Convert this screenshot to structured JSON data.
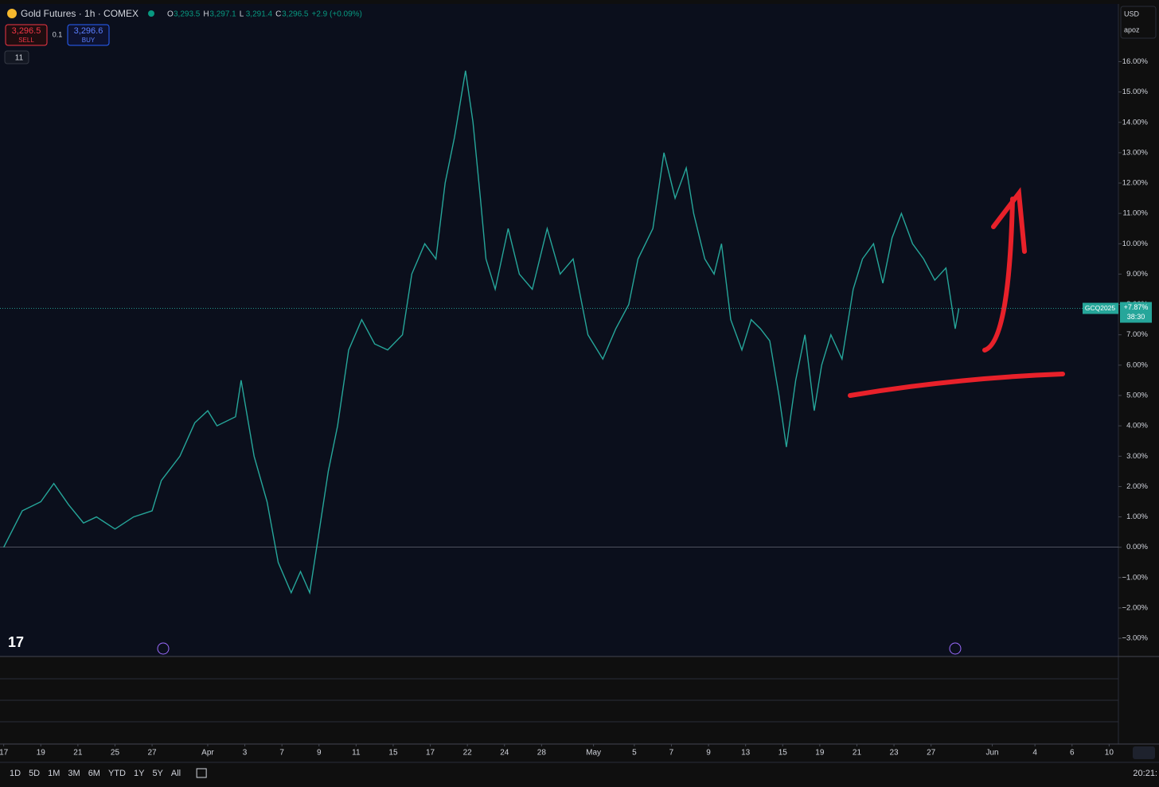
{
  "header": {
    "symbol": "Gold Futures · 1h · COMEX",
    "ohlc": [
      {
        "label": "O",
        "value": "3,293.5"
      },
      {
        "label": "H",
        "value": "3,297.1"
      },
      {
        "label": "L",
        "value": "3,291.4"
      },
      {
        "label": "C",
        "value": "3,296.5"
      }
    ],
    "change": "+2.9 (+0.09%)",
    "sell": {
      "price": "3,296.5",
      "label": "SELL"
    },
    "spread": "0.1",
    "buy": {
      "price": "3,296.6",
      "label": "BUY"
    },
    "indicator_count": "11",
    "currency": "USD",
    "layout": "apoz"
  },
  "price_tag": {
    "symbol": "GCQ2025",
    "change": "+7.87%",
    "countdown": "38:30"
  },
  "footer": {
    "ranges": [
      "1D",
      "5D",
      "1M",
      "3M",
      "6M",
      "YTD",
      "1Y",
      "5Y",
      "All"
    ],
    "clock": "20:21:"
  },
  "chart_data": {
    "type": "line",
    "xlim": [
      -0.2,
      60.1
    ],
    "ylim": [
      -3.6,
      17.9
    ],
    "grid": false,
    "zero_line": true,
    "xticks": [
      {
        "value": 0,
        "label": "17"
      },
      {
        "value": 2,
        "label": "19"
      },
      {
        "value": 4,
        "label": "21"
      },
      {
        "value": 6,
        "label": "25"
      },
      {
        "value": 8,
        "label": "27"
      },
      {
        "value": 11,
        "label": "Apr"
      },
      {
        "value": 13,
        "label": "3"
      },
      {
        "value": 15,
        "label": "7"
      },
      {
        "value": 17,
        "label": "9"
      },
      {
        "value": 19,
        "label": "11"
      },
      {
        "value": 21,
        "label": "15"
      },
      {
        "value": 23,
        "label": "17"
      },
      {
        "value": 25,
        "label": "22"
      },
      {
        "value": 27,
        "label": "24"
      },
      {
        "value": 29,
        "label": "28"
      },
      {
        "value": 31.8,
        "label": "May"
      },
      {
        "value": 34,
        "label": "5"
      },
      {
        "value": 36,
        "label": "7"
      },
      {
        "value": 38,
        "label": "9"
      },
      {
        "value": 40,
        "label": "13"
      },
      {
        "value": 42,
        "label": "15"
      },
      {
        "value": 44,
        "label": "19"
      },
      {
        "value": 46,
        "label": "21"
      },
      {
        "value": 48,
        "label": "23"
      },
      {
        "value": 50,
        "label": "27"
      },
      {
        "value": 53.3,
        "label": "Jun"
      },
      {
        "value": 55.6,
        "label": "4"
      },
      {
        "value": 57.6,
        "label": "6"
      },
      {
        "value": 59.6,
        "label": "10"
      }
    ],
    "yticks": [
      {
        "value": -3,
        "label": "−3.00%"
      },
      {
        "value": -2,
        "label": "−2.00%"
      },
      {
        "value": -1,
        "label": "−1.00%"
      },
      {
        "value": 0,
        "label": "0.00%"
      },
      {
        "value": 1,
        "label": "1.00%"
      },
      {
        "value": 2,
        "label": "2.00%"
      },
      {
        "value": 3,
        "label": "3.00%"
      },
      {
        "value": 4,
        "label": "4.00%"
      },
      {
        "value": 5,
        "label": "5.00%"
      },
      {
        "value": 6,
        "label": "6.00%"
      },
      {
        "value": 7,
        "label": "7.00%"
      },
      {
        "value": 8,
        "label": "8.00%"
      },
      {
        "value": 9,
        "label": "9.00%"
      },
      {
        "value": 10,
        "label": "10.00%"
      },
      {
        "value": 11,
        "label": "11.00%"
      },
      {
        "value": 12,
        "label": "12.00%"
      },
      {
        "value": 13,
        "label": "13.00%"
      },
      {
        "value": 14,
        "label": "14.00%"
      },
      {
        "value": 15,
        "label": "15.00%"
      },
      {
        "value": 16,
        "label": "16.00%"
      }
    ],
    "series": [
      {
        "name": "GCQ2025",
        "color": "#26a69a",
        "x": [
          0,
          1,
          2,
          2.7,
          3.5,
          4.3,
          5,
          6,
          7,
          8,
          8.5,
          9.5,
          10.3,
          11,
          11.5,
          12.5,
          12.8,
          13.5,
          14.2,
          14.8,
          15.5,
          16,
          16.5,
          17,
          17.5,
          18,
          18.6,
          19.3,
          20,
          20.7,
          21.5,
          22,
          22.7,
          23.3,
          23.8,
          24.3,
          24.9,
          25.3,
          25.7,
          26,
          26.5,
          27.2,
          27.8,
          28.5,
          29.3,
          30,
          30.7,
          31.5,
          32.3,
          33,
          33.7,
          34.2,
          35,
          35.6,
          36.2,
          36.8,
          37.2,
          37.8,
          38.3,
          38.7,
          39.2,
          39.8,
          40.3,
          40.8,
          41.3,
          41.8,
          42.2,
          42.7,
          43.2,
          43.7,
          44.1,
          44.6,
          45.2,
          45.8,
          46.3,
          46.9,
          47.4,
          47.9,
          48.4,
          49,
          49.6,
          50.2,
          50.8,
          51.3,
          51.5
        ],
        "values": [
          0,
          1.2,
          1.5,
          2.1,
          1.4,
          0.8,
          1.0,
          0.6,
          1.0,
          1.2,
          2.2,
          3.0,
          4.1,
          4.5,
          4.0,
          4.3,
          5.5,
          3.0,
          1.5,
          -0.5,
          -1.5,
          -0.8,
          -1.5,
          0.5,
          2.5,
          4.0,
          6.5,
          7.5,
          6.7,
          6.5,
          7.0,
          9.0,
          10.0,
          9.5,
          12.0,
          13.5,
          15.7,
          14.0,
          11.5,
          9.5,
          8.5,
          10.5,
          9.0,
          8.5,
          10.5,
          9.0,
          9.5,
          7.0,
          6.2,
          7.2,
          8.0,
          9.5,
          10.5,
          13.0,
          11.5,
          12.5,
          11.0,
          9.5,
          9.0,
          10.0,
          7.5,
          6.5,
          7.5,
          7.2,
          6.8,
          5.0,
          3.3,
          5.5,
          7.0,
          4.5,
          6.0,
          7.0,
          6.2,
          8.5,
          9.5,
          10.0,
          8.7,
          10.2,
          11.0,
          10.0,
          9.5,
          8.8,
          9.2,
          7.2,
          7.87
        ]
      }
    ]
  }
}
